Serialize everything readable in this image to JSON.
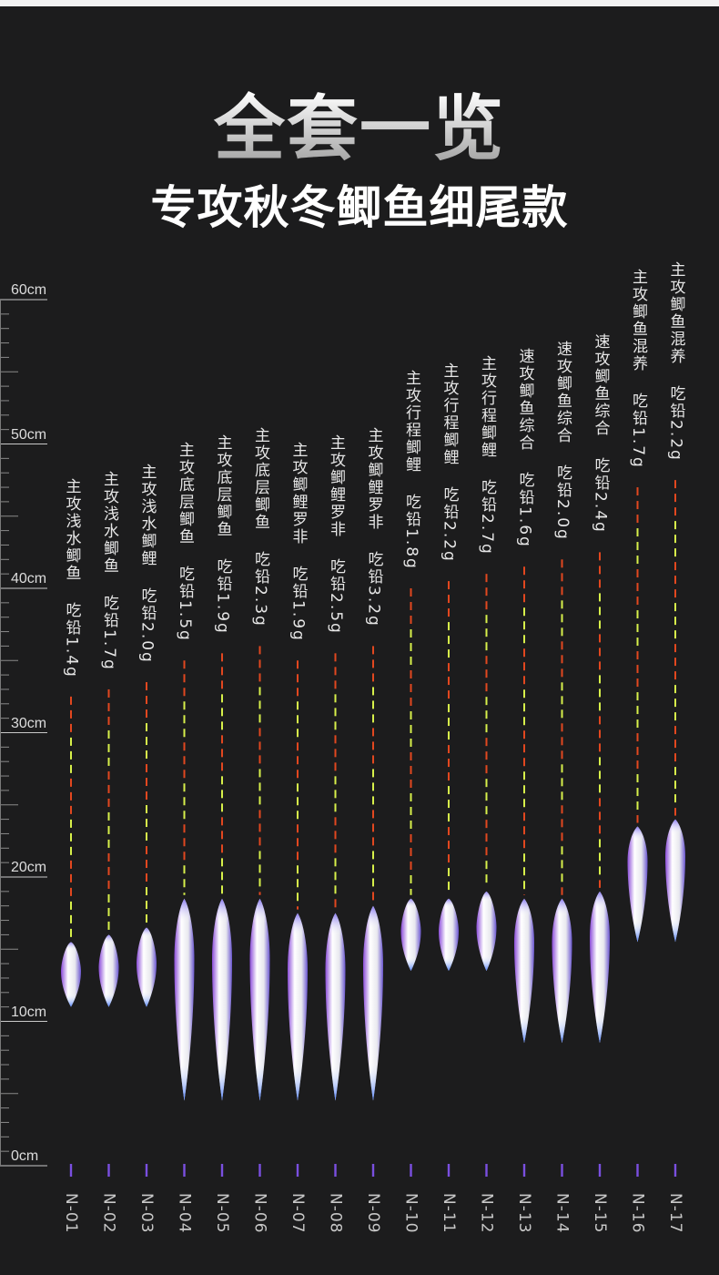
{
  "title": "全套一览",
  "subtitle": "专攻秋冬鲫鱼细尾款",
  "scale": {
    "unit": "cm",
    "labels": [
      "0cm",
      "10cm",
      "20cm",
      "30cm",
      "40cm",
      "50cm",
      "60cm"
    ],
    "values": [
      0,
      10,
      20,
      30,
      40,
      50,
      60
    ]
  },
  "colors": {
    "background": "#1c1c1d",
    "tip_red": "#e2471f",
    "tip_yellow": "#d7f04a",
    "body_purple": "#8a4bd8",
    "body_blue": "#4a6fe0"
  },
  "floats": [
    {
      "model": "N-01",
      "use": "主攻浅水鲫鱼",
      "lead": "吃铅1.4g",
      "total_cm": 32.5,
      "body_top_cm": 15.5,
      "body_bottom_cm": 11
    },
    {
      "model": "N-02",
      "use": "主攻浅水鲫鱼",
      "lead": "吃铅1.7g",
      "total_cm": 33,
      "body_top_cm": 16,
      "body_bottom_cm": 11
    },
    {
      "model": "N-03",
      "use": "主攻浅水鲫鲤",
      "lead": "吃铅2.0g",
      "total_cm": 33.5,
      "body_top_cm": 16.5,
      "body_bottom_cm": 11
    },
    {
      "model": "N-04",
      "use": "主攻底层鲫鱼",
      "lead": "吃铅1.5g",
      "total_cm": 35,
      "body_top_cm": 18.5,
      "body_bottom_cm": 4.5
    },
    {
      "model": "N-05",
      "use": "主攻底层鲫鱼",
      "lead": "吃铅1.9g",
      "total_cm": 35.5,
      "body_top_cm": 18.5,
      "body_bottom_cm": 4.5
    },
    {
      "model": "N-06",
      "use": "主攻底层鲫鱼",
      "lead": "吃铅2.3g",
      "total_cm": 36,
      "body_top_cm": 18.5,
      "body_bottom_cm": 4.5
    },
    {
      "model": "N-07",
      "use": "主攻鲫鲤罗非",
      "lead": "吃铅1.9g",
      "total_cm": 35,
      "body_top_cm": 17.5,
      "body_bottom_cm": 4.5
    },
    {
      "model": "N-08",
      "use": "主攻鲫鲤罗非",
      "lead": "吃铅2.5g",
      "total_cm": 35.5,
      "body_top_cm": 17.5,
      "body_bottom_cm": 4.5
    },
    {
      "model": "N-09",
      "use": "主攻鲫鲤罗非",
      "lead": "吃铅3.2g",
      "total_cm": 36,
      "body_top_cm": 18,
      "body_bottom_cm": 4.5
    },
    {
      "model": "N-10",
      "use": "主攻行程鲫鲤",
      "lead": "吃铅1.8g",
      "total_cm": 40,
      "body_top_cm": 18.5,
      "body_bottom_cm": 13.5
    },
    {
      "model": "N-11",
      "use": "主攻行程鲫鲤",
      "lead": "吃铅2.2g",
      "total_cm": 40.5,
      "body_top_cm": 18.5,
      "body_bottom_cm": 13.5
    },
    {
      "model": "N-12",
      "use": "主攻行程鲫鲤",
      "lead": "吃铅2.7g",
      "total_cm": 41,
      "body_top_cm": 19,
      "body_bottom_cm": 13.5
    },
    {
      "model": "N-13",
      "use": "速攻鲫鱼综合",
      "lead": "吃铅1.6g",
      "total_cm": 41.5,
      "body_top_cm": 18.5,
      "body_bottom_cm": 8.5
    },
    {
      "model": "N-14",
      "use": "速攻鲫鱼综合",
      "lead": "吃铅2.0g",
      "total_cm": 42,
      "body_top_cm": 18.5,
      "body_bottom_cm": 8.5
    },
    {
      "model": "N-15",
      "use": "速攻鲫鱼综合",
      "lead": "吃铅2.4g",
      "total_cm": 42.5,
      "body_top_cm": 19,
      "body_bottom_cm": 8.5
    },
    {
      "model": "N-16",
      "use": "主攻鲫鱼混养",
      "lead": "吃铅1.7g",
      "total_cm": 47,
      "body_top_cm": 23.5,
      "body_bottom_cm": 15.5
    },
    {
      "model": "N-17",
      "use": "主攻鲫鱼混养",
      "lead": "吃铅2.2g",
      "total_cm": 47.5,
      "body_top_cm": 24,
      "body_bottom_cm": 15.5
    }
  ]
}
